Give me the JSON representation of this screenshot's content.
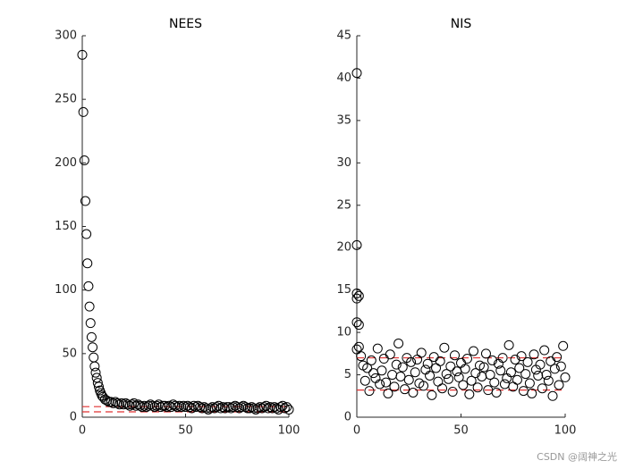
{
  "chart_data": [
    {
      "type": "scatter",
      "title": "NEES",
      "color": "#000000",
      "reference_color": "#e03030",
      "xlim": [
        0,
        100
      ],
      "xticks": [
        0,
        50,
        100
      ],
      "ylim": [
        0,
        300
      ],
      "yticks": [
        0,
        50,
        100,
        150,
        200,
        250,
        300
      ],
      "reference_lines": [
        4.2,
        8.3
      ],
      "x": [
        0,
        0.5,
        1,
        1.5,
        2,
        2.5,
        3,
        3.5,
        4,
        4.5,
        5,
        5.5,
        6,
        6.5,
        7,
        7.5,
        8,
        8.5,
        9,
        9.5,
        10,
        11,
        12,
        13,
        14,
        15,
        16,
        17,
        18,
        19,
        20,
        21,
        22,
        23,
        24,
        25,
        26,
        27,
        28,
        29,
        30,
        31,
        32,
        33,
        34,
        35,
        36,
        37,
        38,
        39,
        40,
        41,
        42,
        43,
        44,
        45,
        46,
        47,
        48,
        49,
        50,
        51,
        52,
        53,
        54,
        55,
        56,
        57,
        58,
        59,
        60,
        61,
        62,
        63,
        64,
        65,
        66,
        67,
        68,
        69,
        70,
        71,
        72,
        73,
        74,
        75,
        76,
        77,
        78,
        79,
        80,
        81,
        82,
        83,
        84,
        85,
        86,
        87,
        88,
        89,
        90,
        91,
        92,
        93,
        94,
        95,
        96,
        97,
        98,
        99,
        100
      ],
      "values": [
        285,
        240,
        202,
        170,
        144,
        121,
        103,
        87,
        74,
        63,
        55,
        47,
        40,
        35,
        31,
        27,
        24,
        21,
        19,
        17,
        16,
        14,
        13,
        12,
        12,
        11,
        12,
        11,
        10,
        11,
        10,
        11,
        10,
        9,
        10,
        11,
        9,
        10,
        9,
        8,
        9,
        8,
        9,
        10,
        9,
        8,
        9,
        10,
        8,
        9,
        9,
        8,
        9,
        8,
        10,
        9,
        8,
        9,
        8,
        9,
        8,
        9,
        8,
        7,
        9,
        8,
        9,
        8,
        7,
        8,
        7,
        6,
        7,
        8,
        7,
        8,
        9,
        7,
        8,
        7,
        8,
        8,
        7,
        8,
        9,
        8,
        7,
        8,
        9,
        8,
        7,
        7,
        8,
        7,
        6,
        7,
        8,
        7,
        8,
        9,
        7,
        8,
        7,
        8,
        7,
        6,
        8,
        9,
        7,
        8,
        6
      ]
    },
    {
      "type": "scatter",
      "title": "NIS",
      "color": "#000000",
      "reference_color": "#e03030",
      "xlim": [
        0,
        100
      ],
      "xticks": [
        0,
        50,
        100
      ],
      "ylim": [
        0,
        45
      ],
      "yticks": [
        0,
        5,
        10,
        15,
        20,
        25,
        30,
        35,
        40,
        45
      ],
      "reference_lines": [
        3.2,
        7.0
      ],
      "x": [
        0,
        0,
        0,
        0,
        0,
        0,
        1,
        1,
        1,
        2,
        3,
        4,
        5,
        6,
        7,
        8,
        9,
        10,
        11,
        12,
        13,
        14,
        15,
        16,
        17,
        18,
        19,
        20,
        21,
        22,
        23,
        24,
        25,
        26,
        27,
        28,
        29,
        30,
        31,
        32,
        33,
        34,
        35,
        36,
        37,
        38,
        39,
        40,
        41,
        42,
        43,
        44,
        45,
        46,
        47,
        48,
        49,
        50,
        51,
        52,
        53,
        54,
        55,
        56,
        57,
        58,
        59,
        60,
        61,
        62,
        63,
        64,
        65,
        66,
        67,
        68,
        69,
        70,
        71,
        72,
        73,
        74,
        75,
        76,
        77,
        78,
        79,
        80,
        81,
        82,
        83,
        84,
        85,
        86,
        87,
        88,
        89,
        90,
        91,
        92,
        93,
        94,
        95,
        96,
        97,
        98,
        99,
        100
      ],
      "values": [
        40.6,
        20.3,
        14.6,
        14.0,
        11.2,
        8.0,
        14.3,
        10.9,
        8.3,
        7.2,
        6.1,
        4.3,
        5.8,
        3.1,
        6.7,
        5.2,
        4.6,
        8.1,
        3.9,
        5.5,
        6.9,
        4.1,
        2.8,
        7.4,
        5.0,
        3.6,
        6.2,
        8.7,
        4.8,
        5.9,
        3.3,
        7.0,
        4.4,
        6.5,
        2.9,
        5.3,
        6.8,
        4.0,
        7.6,
        3.7,
        5.6,
        6.3,
        4.9,
        2.6,
        7.1,
        5.8,
        4.2,
        6.6,
        3.4,
        8.2,
        5.1,
        4.5,
        6.0,
        3.0,
        7.3,
        5.4,
        4.7,
        6.4,
        3.8,
        5.7,
        6.9,
        2.7,
        4.3,
        7.8,
        5.2,
        3.5,
        6.1,
        4.8,
        5.9,
        7.5,
        3.2,
        5.0,
        6.7,
        4.1,
        2.9,
        6.3,
        5.5,
        7.0,
        3.9,
        4.6,
        8.5,
        5.3,
        3.6,
        6.8,
        4.4,
        5.8,
        7.2,
        3.1,
        5.1,
        6.5,
        4.0,
        2.8,
        7.4,
        5.6,
        4.9,
        6.2,
        3.4,
        7.9,
        5.0,
        4.3,
        6.6,
        2.5,
        5.7,
        7.1,
        3.8,
        6.0,
        8.4,
        4.7
      ]
    }
  ],
  "watermark": "CSDN @阔神之光"
}
